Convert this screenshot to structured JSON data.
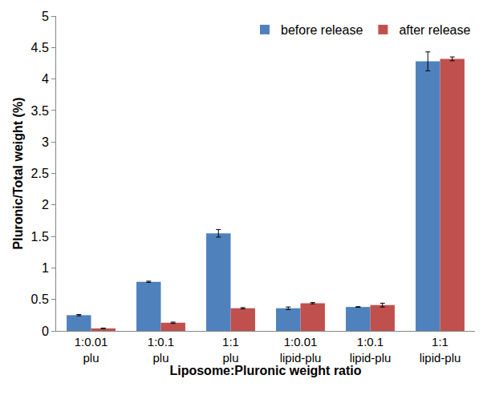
{
  "chart_data": {
    "type": "bar",
    "x_label": "Liposome:Pluronic weight ratio",
    "y_label": "Pluronic/Total weight (%)",
    "categories": [
      "1:0.01\nplu",
      "1:0.1\nplu",
      "1:1\nplu",
      "1:0.01\nlipid-plu",
      "1:0.1\nlipid-plu",
      "1:1\nlipid-plu"
    ],
    "series": [
      {
        "name": "before release",
        "color": "#4f81bd",
        "values": [
          0.25,
          0.78,
          1.55,
          0.36,
          0.38,
          4.28
        ],
        "errors": [
          0.01,
          0.01,
          0.06,
          0.02,
          0.005,
          0.15
        ]
      },
      {
        "name": "after release",
        "color": "#c0504d",
        "values": [
          0.04,
          0.13,
          0.36,
          0.44,
          0.41,
          4.32
        ],
        "errors": [
          0.005,
          0.01,
          0.01,
          0.01,
          0.03,
          0.03
        ]
      }
    ],
    "ylim": [
      0,
      5
    ],
    "yticks": [
      0,
      0.5,
      1,
      1.5,
      2,
      2.5,
      3,
      3.5,
      4,
      4.5,
      5
    ],
    "grid": false,
    "legend": "top right"
  }
}
